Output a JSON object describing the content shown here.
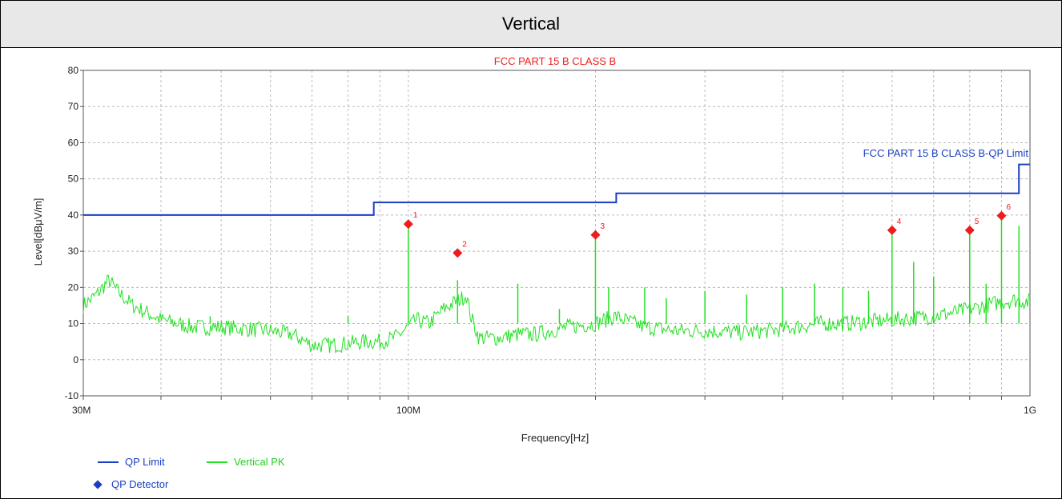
{
  "header": {
    "title": "Vertical"
  },
  "chart_data": {
    "type": "line",
    "title": "FCC PART 15 B CLASS B",
    "xlabel": "Frequency[Hz]",
    "ylabel": "Level[dBμV/m]",
    "xscale": "log",
    "xlim": [
      30000000,
      1000000000
    ],
    "ylim": [
      -10,
      80
    ],
    "yticks": [
      -10,
      0,
      10,
      20,
      30,
      40,
      50,
      60,
      70,
      80
    ],
    "xticks": [
      {
        "value": 30000000,
        "label": "30M"
      },
      {
        "value": 100000000,
        "label": "100M"
      },
      {
        "value": 1000000000,
        "label": "1G"
      }
    ],
    "grid": true,
    "limit_label": "FCC PART 15 B CLASS B-QP Limit",
    "series": [
      {
        "name": "QP Limit",
        "color": "#1a3fc4",
        "x": [
          30000000,
          88000000,
          88000000,
          216000000,
          216000000,
          960000000,
          960000000,
          1000000000
        ],
        "y": [
          40,
          40,
          43.5,
          43.5,
          46,
          46,
          54,
          54
        ]
      },
      {
        "name": "Vertical PK",
        "color": "#22e022",
        "x": [
          30000000,
          31500000,
          33000000,
          34000000,
          36000000,
          40000000,
          45000000,
          50000000,
          55000000,
          60000000,
          65000000,
          70000000,
          75000000,
          80000000,
          85000000,
          90000000,
          95000000,
          100000000,
          103000000,
          108000000,
          114000000,
          119000000,
          122000000,
          124000000,
          126000000,
          130000000,
          140000000,
          150000000,
          160000000,
          180000000,
          200000000,
          215000000,
          240000000,
          270000000,
          300000000,
          340000000,
          380000000,
          420000000,
          460000000,
          500000000,
          550000000,
          600000000,
          650000000,
          700000000,
          750000000,
          800000000,
          850000000,
          900000000,
          950000000,
          1000000000
        ],
        "y": [
          15,
          18,
          22,
          19,
          15,
          11,
          9,
          9,
          8.5,
          8,
          7,
          4,
          4,
          4.5,
          5,
          5,
          6,
          9,
          11,
          10,
          14,
          16,
          17,
          18,
          12,
          6,
          6,
          7,
          7,
          9,
          10,
          12,
          9,
          8,
          8,
          7.5,
          8,
          9,
          10,
          10,
          10.5,
          11,
          11.5,
          12,
          13,
          14,
          15,
          16,
          16.5,
          16
        ]
      }
    ],
    "spikes": {
      "x": [
        48000000,
        80000000,
        100000000,
        120000000,
        150000000,
        175000000,
        200000000,
        210000000,
        240000000,
        260000000,
        300000000,
        350000000,
        400000000,
        450000000,
        500000000,
        550000000,
        600000000,
        650000000,
        700000000,
        800000000,
        850000000,
        900000000,
        960000000
      ],
      "y": [
        12,
        12,
        37,
        22,
        21,
        14,
        34,
        20,
        20,
        17,
        19,
        18,
        20,
        21,
        20,
        19,
        35,
        27,
        23,
        35,
        21,
        39,
        37
      ]
    },
    "markers": {
      "name": "QP Detector",
      "color": "#ee1c1c",
      "legend_color": "#1a3fc4",
      "labels": [
        "1",
        "2",
        "3",
        "4",
        "5",
        "6"
      ],
      "x": [
        100000000,
        120000000,
        200000000,
        600000000,
        800000000,
        900000000
      ],
      "y": [
        37.5,
        29.5,
        34.5,
        35.8,
        35.8,
        39.8
      ]
    },
    "legend": [
      "QP Limit",
      "Vertical PK",
      "QP Detector"
    ],
    "legend_position": "bottom-left"
  }
}
